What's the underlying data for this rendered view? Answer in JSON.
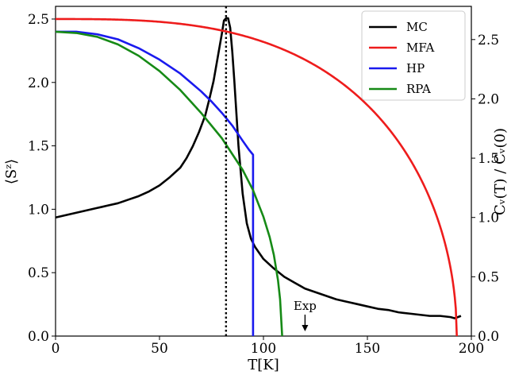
{
  "chart_data": {
    "type": "line",
    "title": "",
    "xlabel": "T[K]",
    "ylabel_left": "⟨Sᶻ⟩",
    "ylabel_right": "Cᵥ(T) / Cᵥ(0)",
    "xlim": [
      0,
      200
    ],
    "ylim_left": [
      0,
      2.6
    ],
    "ylim_right": [
      0,
      2.78
    ],
    "x_ticks": [
      "0",
      "50",
      "100",
      "150",
      "200"
    ],
    "y_ticks_left": [
      "0.0",
      "0.5",
      "1.0",
      "1.5",
      "2.0",
      "2.5"
    ],
    "y_ticks_right": [
      "0.0",
      "0.5",
      "1.0",
      "1.5",
      "2.0",
      "2.5"
    ],
    "grid": false,
    "legend_position": "top-right",
    "annotations": {
      "vertical_line_x": 82,
      "exp_label": "Exp",
      "exp_arrow_x": 120
    },
    "series": [
      {
        "name": "MC",
        "color": "#000000",
        "axis": "right",
        "x": [
          0,
          5,
          10,
          15,
          20,
          25,
          30,
          35,
          40,
          45,
          50,
          55,
          60,
          63,
          66,
          69,
          72,
          74,
          76,
          78,
          80,
          81,
          82,
          83,
          84,
          85,
          86,
          88,
          90,
          92,
          94,
          96,
          98,
          100,
          105,
          110,
          115,
          120,
          125,
          130,
          135,
          140,
          145,
          150,
          155,
          160,
          165,
          170,
          175,
          180,
          185,
          190,
          192,
          195
        ],
        "y": [
          1.0,
          1.02,
          1.04,
          1.06,
          1.08,
          1.1,
          1.12,
          1.15,
          1.18,
          1.22,
          1.27,
          1.34,
          1.42,
          1.5,
          1.6,
          1.72,
          1.86,
          2.0,
          2.15,
          2.35,
          2.55,
          2.66,
          2.68,
          2.68,
          2.6,
          2.4,
          2.15,
          1.6,
          1.2,
          0.95,
          0.82,
          0.75,
          0.7,
          0.65,
          0.57,
          0.5,
          0.45,
          0.4,
          0.37,
          0.34,
          0.31,
          0.29,
          0.27,
          0.25,
          0.23,
          0.22,
          0.2,
          0.19,
          0.18,
          0.17,
          0.17,
          0.16,
          0.15,
          0.17
        ]
      },
      {
        "name": "MFA",
        "color": "#ee1c1c",
        "axis": "left",
        "tc": 193,
        "amplitude": 2.5,
        "x": [
          0,
          10,
          20,
          30,
          40,
          50,
          60,
          70,
          80,
          90,
          100,
          110,
          120,
          130,
          140,
          150,
          160,
          170,
          180,
          185,
          188,
          190,
          192,
          193
        ],
        "y": [
          2.5,
          2.5,
          2.5,
          2.49,
          2.48,
          2.46,
          2.43,
          2.39,
          2.34,
          2.28,
          2.21,
          2.13,
          2.03,
          1.91,
          1.77,
          1.6,
          1.39,
          1.13,
          0.79,
          0.57,
          0.4,
          0.29,
          0.15,
          0.0
        ]
      },
      {
        "name": "HP",
        "color": "#1a1aee",
        "axis": "left",
        "x": [
          0,
          10,
          20,
          30,
          40,
          50,
          60,
          65,
          70,
          75,
          80,
          85,
          90,
          93,
          95,
          95
        ],
        "y": [
          2.4,
          2.4,
          2.38,
          2.34,
          2.27,
          2.18,
          2.07,
          2.0,
          1.93,
          1.85,
          1.76,
          1.66,
          1.54,
          1.47,
          1.43,
          0.0
        ]
      },
      {
        "name": "RPA",
        "color": "#168a16",
        "axis": "left",
        "x": [
          0,
          10,
          20,
          30,
          40,
          50,
          60,
          70,
          80,
          90,
          95,
          100,
          103,
          105,
          107,
          108,
          109
        ],
        "y": [
          2.4,
          2.39,
          2.36,
          2.3,
          2.21,
          2.09,
          1.94,
          1.76,
          1.56,
          1.31,
          1.15,
          0.94,
          0.78,
          0.64,
          0.44,
          0.29,
          0.0
        ]
      }
    ]
  }
}
